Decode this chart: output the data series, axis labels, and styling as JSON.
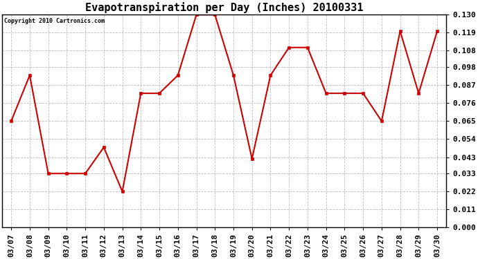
{
  "title": "Evapotranspiration per Day (Inches) 20100331",
  "copyright": "Copyright 2010 Cartronics.com",
  "x_labels": [
    "03/07",
    "03/08",
    "03/09",
    "03/10",
    "03/11",
    "03/12",
    "03/13",
    "03/14",
    "03/15",
    "03/16",
    "03/17",
    "03/18",
    "03/19",
    "03/20",
    "03/21",
    "03/22",
    "03/23",
    "03/24",
    "03/25",
    "03/26",
    "03/27",
    "03/28",
    "03/29",
    "03/30"
  ],
  "y_values": [
    0.065,
    0.093,
    0.033,
    0.033,
    0.033,
    0.049,
    0.022,
    0.082,
    0.082,
    0.093,
    0.13,
    0.13,
    0.093,
    0.042,
    0.093,
    0.11,
    0.11,
    0.082,
    0.082,
    0.082,
    0.065,
    0.12,
    0.082,
    0.12
  ],
  "line_color": "#cc0000",
  "marker": "s",
  "marker_size": 2.5,
  "line_width": 1.5,
  "y_ticks": [
    0.0,
    0.011,
    0.022,
    0.033,
    0.043,
    0.054,
    0.065,
    0.076,
    0.087,
    0.098,
    0.108,
    0.119,
    0.13
  ],
  "y_min": 0.0,
  "y_max": 0.13,
  "bg_color": "#ffffff",
  "plot_bg_color": "#ffffff",
  "grid_color": "#bbbbbb",
  "title_fontsize": 11,
  "copyright_fontsize": 6,
  "tick_fontsize": 8
}
